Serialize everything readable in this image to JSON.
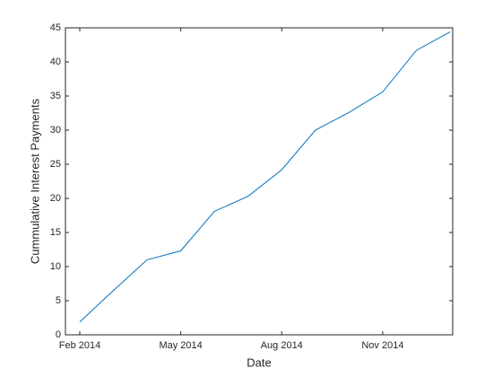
{
  "chart_data": {
    "type": "line",
    "x_label": "Date",
    "y_label": "Cummulative Interest Payments",
    "x": [
      "2014-02",
      "2014-03",
      "2014-04",
      "2014-05",
      "2014-06",
      "2014-07",
      "2014-08",
      "2014-09",
      "2014-10",
      "2014-11",
      "2014-12",
      "2015-01"
    ],
    "series": [
      {
        "color": "#0072bd",
        "values": [
          1.9,
          6.5,
          11.0,
          12.3,
          18.1,
          20.3,
          24.2,
          30.0,
          32.6,
          35.6,
          41.7,
          44.4
        ]
      }
    ],
    "xticks": [
      {
        "value": "2014-02",
        "label": "Feb 2014"
      },
      {
        "value": "2014-05",
        "label": "May 2014"
      },
      {
        "value": "2014-08",
        "label": "Aug 2014"
      },
      {
        "value": "2014-11",
        "label": "Nov 2014"
      }
    ],
    "ylim": [
      0,
      45
    ],
    "yticks": [
      0,
      5,
      10,
      15,
      20,
      25,
      30,
      35,
      40,
      45
    ],
    "grid": false
  }
}
